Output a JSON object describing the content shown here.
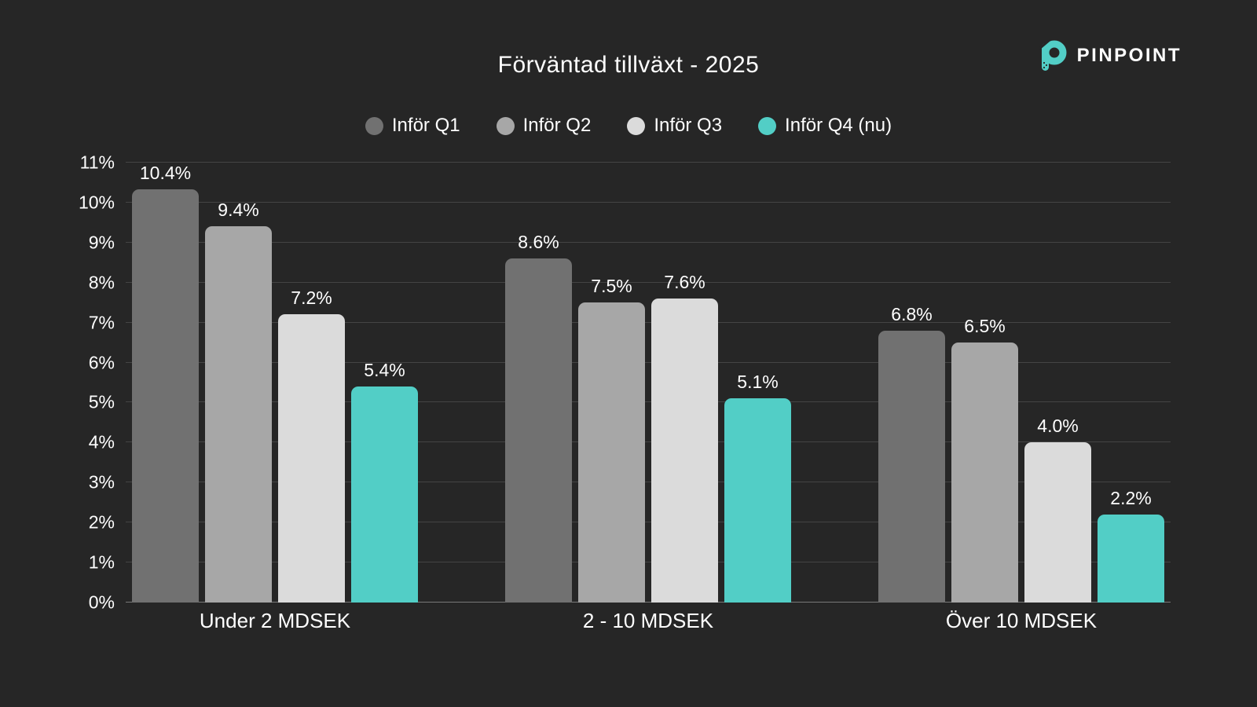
{
  "header": {
    "brand": "PINPOINT"
  },
  "colors": {
    "background": "#262626",
    "text": "#f5f5f5",
    "gridline": "rgba(255,255,255,0.14)",
    "baseline": "rgba(255,255,255,0.38)",
    "accent": "#52CEC6"
  },
  "chart_data": {
    "type": "bar",
    "title": "Förväntad tillväxt - 2025",
    "categories": [
      "Under 2 MDSEK",
      "2 - 10 MDSEK",
      "Över 10 MDSEK"
    ],
    "series": [
      {
        "name": "Inför Q1",
        "color": "#717171",
        "values": [
          10.4,
          8.6,
          6.8
        ],
        "value_labels": [
          "10.4%",
          "8.6%",
          "6.8%"
        ]
      },
      {
        "name": "Inför Q2",
        "color": "#A7A7A7",
        "values": [
          9.4,
          7.5,
          6.5
        ],
        "value_labels": [
          "9.4%",
          "7.5%",
          "6.5%"
        ]
      },
      {
        "name": "Inför Q3",
        "color": "#DBDBDB",
        "values": [
          7.2,
          7.6,
          4.0
        ],
        "value_labels": [
          "7.2%",
          "7.6%",
          "4.0%"
        ]
      },
      {
        "name": "Inför Q4 (nu)",
        "color": "#52CEC6",
        "values": [
          5.4,
          5.1,
          2.2
        ],
        "value_labels": [
          "5.4%",
          "5.1%",
          "2.2%"
        ]
      }
    ],
    "ylim": [
      0,
      11
    ],
    "yticks": [
      "0%",
      "1%",
      "2%",
      "3%",
      "4%",
      "5%",
      "6%",
      "7%",
      "8%",
      "9%",
      "10%",
      "11%"
    ],
    "grid": true,
    "legend_position": "top-center"
  }
}
